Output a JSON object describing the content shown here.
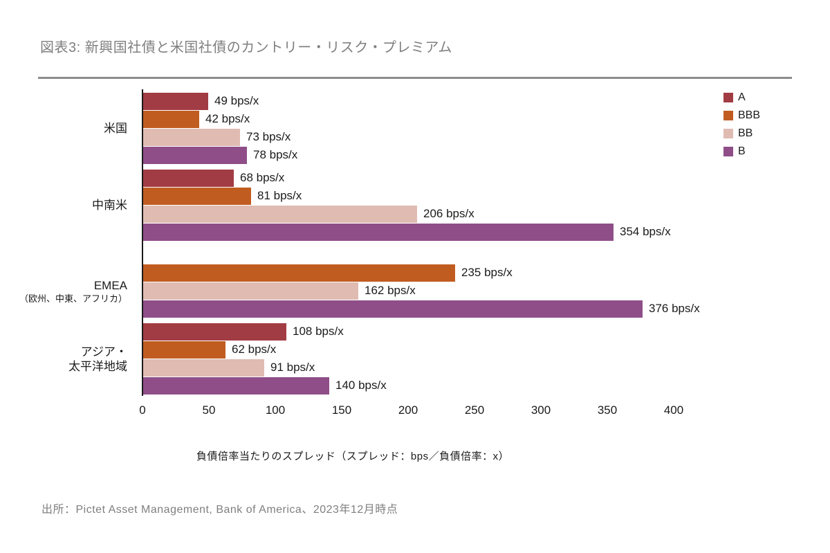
{
  "chart_data": {
    "type": "bar",
    "orientation": "horizontal",
    "title": "図表3: 新興国社債と米国社債のカントリー・リスク・プレミアム",
    "categories": [
      {
        "lines": [
          "米国"
        ]
      },
      {
        "lines": [
          "中南米"
        ]
      },
      {
        "lines": [
          "EMEA",
          "（欧州、中東、アフリカ）"
        ],
        "second_line_small": true
      },
      {
        "lines": [
          "アジア・",
          "太平洋地域"
        ]
      }
    ],
    "series": [
      {
        "name": "A",
        "color": "#a23c44",
        "values": [
          49,
          68,
          null,
          108
        ]
      },
      {
        "name": "BBB",
        "color": "#c15c20",
        "values": [
          42,
          81,
          235,
          62
        ]
      },
      {
        "name": "BB",
        "color": "#e0bbb2",
        "values": [
          73,
          206,
          162,
          91
        ]
      },
      {
        "name": "B",
        "color": "#8f4e88",
        "values": [
          78,
          354,
          376,
          140
        ]
      }
    ],
    "value_label_suffix": " bps/x",
    "xlabel": "負債倍率当たりのスプレッド（スプレッド：bps／負債倍率：x）",
    "x_ticks": [
      0,
      50,
      100,
      150,
      200,
      250,
      300,
      350,
      400
    ],
    "xlim": [
      0,
      400
    ],
    "grid": false,
    "legend_position": "top-right",
    "source_note": "出所：Pictet Asset Management, Bank of America、2023年12月時点"
  }
}
